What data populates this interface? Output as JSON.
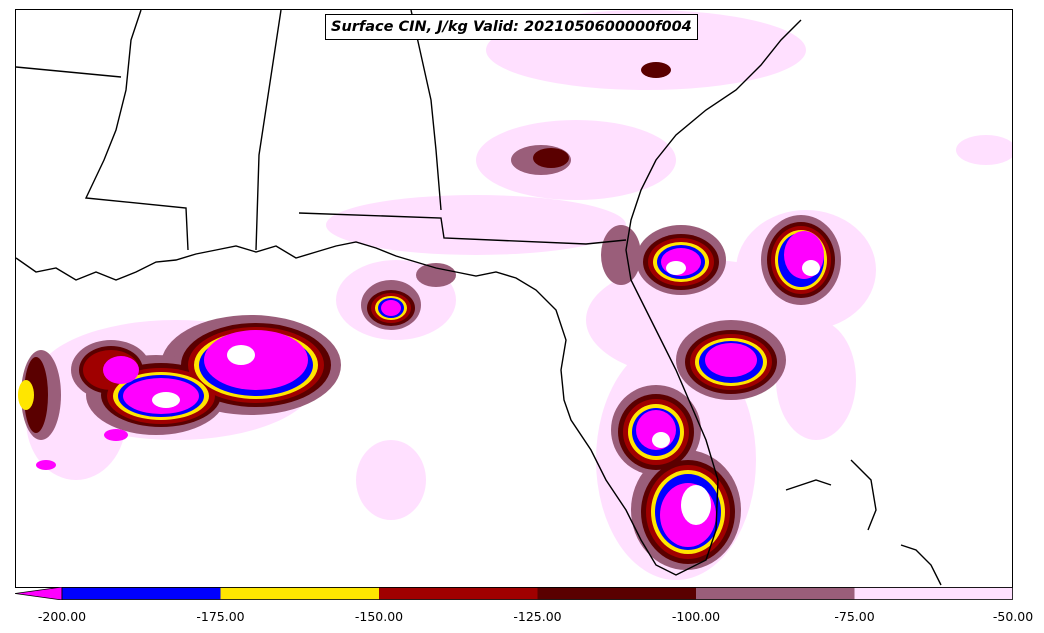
{
  "title": "Surface CIN, J/kg Valid: 2021050600000f004",
  "colorbar": {
    "extend_min_color": "#ff00ff",
    "bins": [
      {
        "from": -200,
        "to": -175,
        "color": "#0000ff"
      },
      {
        "from": -175,
        "to": -150,
        "color": "#ffe600"
      },
      {
        "from": -150,
        "to": -125,
        "color": "#a00000"
      },
      {
        "from": -125,
        "to": -100,
        "color": "#5a0000"
      },
      {
        "from": -100,
        "to": -75,
        "color": "#9a5e7a"
      },
      {
        "from": -75,
        "to": -50,
        "color": "#ffe0ff"
      }
    ],
    "ticks": [
      "-200.00",
      "-175.00",
      "-150.00",
      "-125.00",
      "-100.00",
      "-75.00",
      "-50.00"
    ]
  },
  "map": {
    "land_outline_color": "#000000",
    "background_color": "#ffffff"
  }
}
